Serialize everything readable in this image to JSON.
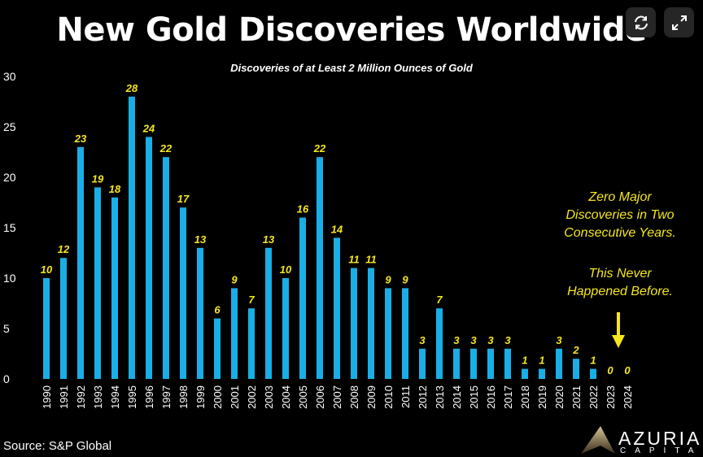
{
  "chart_data": {
    "type": "bar",
    "title": "New Gold Discoveries Worldwide",
    "subtitle": "Discoveries of at Least 2 Million Ounces of Gold",
    "categories": [
      "1990",
      "1991",
      "1992",
      "1993",
      "1994",
      "1995",
      "1996",
      "1997",
      "1998",
      "1999",
      "2000",
      "2001",
      "2002",
      "2003",
      "2004",
      "2005",
      "2006",
      "2007",
      "2008",
      "2009",
      "2010",
      "2011",
      "2012",
      "2013",
      "2014",
      "2015",
      "2016",
      "2017",
      "2018",
      "2019",
      "2020",
      "2021",
      "2022",
      "2023",
      "2024"
    ],
    "values": [
      10,
      12,
      23,
      19,
      18,
      28,
      24,
      22,
      17,
      13,
      6,
      9,
      7,
      13,
      10,
      16,
      22,
      14,
      11,
      11,
      9,
      9,
      3,
      7,
      3,
      3,
      3,
      3,
      1,
      1,
      3,
      2,
      1,
      0,
      0
    ],
    "ylim": [
      0,
      30
    ],
    "yticks": [
      0,
      5,
      10,
      15,
      20,
      25,
      30
    ],
    "xlabel": "",
    "ylabel": "",
    "grid": false,
    "bar_color": "#1aaee6",
    "label_color": "#f5e61e",
    "annotation": {
      "lines1": [
        "Zero Major",
        "Discoveries in Two",
        "Consecutive Years."
      ],
      "lines2": [
        "This Never",
        "Happened Before."
      ]
    }
  },
  "source": "Source: S&P Global",
  "logo": {
    "name": "AZURIA",
    "sub": "CAPITAL"
  },
  "controls": {
    "refresh": "refresh-icon",
    "expand": "expand-icon"
  }
}
